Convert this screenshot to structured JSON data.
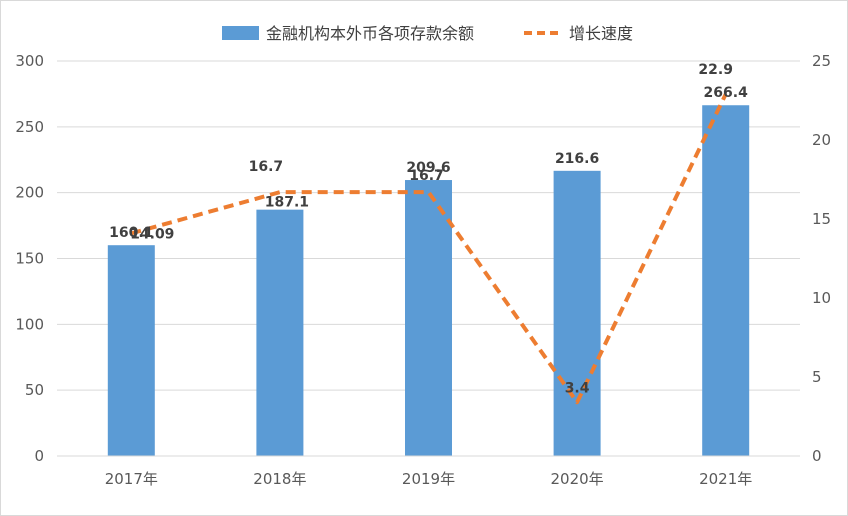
{
  "chart_data": {
    "type": "bar",
    "categories": [
      "2017年",
      "2018年",
      "2019年",
      "2020年",
      "2021年"
    ],
    "series": [
      {
        "name": "金融机构本外币各项存款余额",
        "type": "bar",
        "axis": "left",
        "color": "#5b9bd5",
        "values": [
          160.1,
          187.1,
          209.6,
          216.6,
          266.4
        ],
        "labels": [
          "160.1",
          "187.1",
          "209.6",
          "216.6",
          "266.4"
        ]
      },
      {
        "name": "增长速度",
        "type": "line",
        "style": "dashed",
        "axis": "right",
        "color": "#ed7d31",
        "values": [
          14.09,
          16.7,
          16.7,
          3.4,
          22.9
        ],
        "labels": [
          "14.09",
          "16.7",
          "16.7",
          "3.4",
          "22.9"
        ]
      }
    ],
    "y_left": {
      "ylim": [
        0,
        300
      ],
      "ticks": [
        "0",
        "50",
        "100",
        "150",
        "200",
        "250",
        "300"
      ]
    },
    "y_right": {
      "ylim": [
        0,
        25
      ],
      "ticks": [
        "0",
        "5",
        "10",
        "15",
        "20",
        "25"
      ]
    },
    "grid": true,
    "legend": "top-center"
  }
}
